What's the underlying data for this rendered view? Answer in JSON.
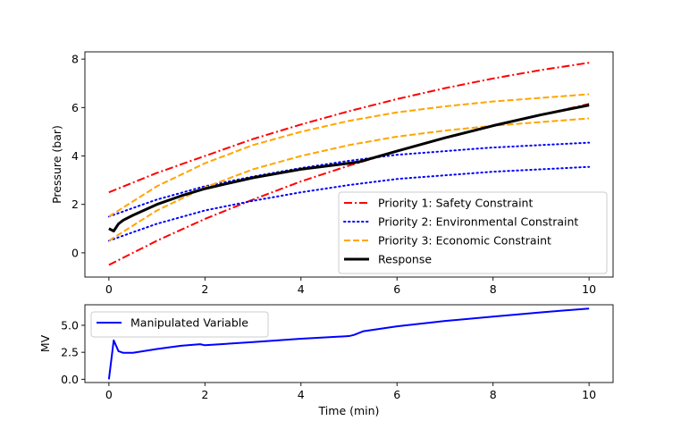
{
  "chart_data": [
    {
      "type": "line",
      "xlabel": "",
      "ylabel": "Pressure (bar)",
      "xlim": [
        -0.5,
        10.5
      ],
      "ylim": [
        -1.0,
        8.3
      ],
      "xticks": [
        "0",
        "2",
        "4",
        "6",
        "8",
        "10"
      ],
      "yticks": [
        "0",
        "2",
        "4",
        "6",
        "8"
      ],
      "legend_position": "lower-right",
      "series": [
        {
          "name": "Priority 1: Safety Constraint",
          "color": "#ff0000",
          "style": "dashdot",
          "legend": true,
          "x": [
            0,
            1,
            2,
            3,
            4,
            5,
            6,
            7,
            8,
            9,
            10
          ],
          "y": [
            2.5,
            3.3,
            4.0,
            4.7,
            5.3,
            5.85,
            6.35,
            6.8,
            7.2,
            7.55,
            7.85
          ]
        },
        {
          "name": "Priority 1: Safety Constraint (lower)",
          "color": "#ff0000",
          "style": "dashdot",
          "legend": false,
          "x": [
            0,
            1,
            2,
            3,
            4,
            5,
            6,
            7,
            8,
            9,
            10
          ],
          "y": [
            -0.5,
            0.5,
            1.4,
            2.2,
            2.95,
            3.6,
            4.2,
            4.75,
            5.25,
            5.7,
            6.15
          ]
        },
        {
          "name": "Priority 2: Environmental Constraint",
          "color": "#0000ff",
          "style": "dotted",
          "legend": true,
          "x": [
            0,
            1,
            2,
            3,
            4,
            5,
            6,
            7,
            8,
            9,
            10
          ],
          "y": [
            1.5,
            2.2,
            2.75,
            3.15,
            3.5,
            3.8,
            4.05,
            4.2,
            4.35,
            4.45,
            4.55
          ]
        },
        {
          "name": "Priority 2: Environmental Constraint (lower)",
          "color": "#0000ff",
          "style": "dotted",
          "legend": false,
          "x": [
            0,
            1,
            2,
            3,
            4,
            5,
            6,
            7,
            8,
            9,
            10
          ],
          "y": [
            0.5,
            1.2,
            1.75,
            2.15,
            2.5,
            2.8,
            3.05,
            3.2,
            3.35,
            3.45,
            3.55
          ]
        },
        {
          "name": "Priority 3: Economic Constraint",
          "color": "#ffa500",
          "style": "dashed",
          "legend": true,
          "x": [
            0,
            1,
            2,
            3,
            4,
            5,
            6,
            7,
            8,
            9,
            10
          ],
          "y": [
            1.5,
            2.75,
            3.7,
            4.45,
            5.0,
            5.45,
            5.8,
            6.05,
            6.25,
            6.4,
            6.55
          ]
        },
        {
          "name": "Priority 3: Economic Constraint (lower)",
          "color": "#ffa500",
          "style": "dashed",
          "legend": false,
          "x": [
            0,
            1,
            2,
            3,
            4,
            5,
            6,
            7,
            8,
            9,
            10
          ],
          "y": [
            0.5,
            1.75,
            2.7,
            3.45,
            4.0,
            4.45,
            4.8,
            5.05,
            5.25,
            5.4,
            5.55
          ]
        },
        {
          "name": "Response",
          "color": "#000000",
          "style": "solid",
          "legend": true,
          "x": [
            0,
            0.1,
            0.2,
            0.3,
            0.5,
            1.0,
            1.5,
            2.0,
            3.0,
            4.0,
            5.0,
            5.2,
            6.0,
            7.0,
            8.0,
            9.0,
            10.0
          ],
          "y": [
            1.0,
            0.9,
            1.2,
            1.35,
            1.55,
            2.0,
            2.35,
            2.65,
            3.1,
            3.45,
            3.7,
            3.75,
            4.2,
            4.75,
            5.25,
            5.7,
            6.1
          ]
        }
      ]
    },
    {
      "type": "line",
      "xlabel": "Time (min)",
      "ylabel": "MV",
      "xlim": [
        -0.5,
        10.5
      ],
      "ylim": [
        -0.3,
        6.9
      ],
      "xticks": [
        "0",
        "2",
        "4",
        "6",
        "8",
        "10"
      ],
      "yticks": [
        "0.0",
        "2.5",
        "5.0"
      ],
      "legend_position": "upper-left",
      "series": [
        {
          "name": "Manipulated Variable",
          "color": "#0000ff",
          "style": "solid",
          "legend": true,
          "x": [
            0,
            0.1,
            0.2,
            0.3,
            0.5,
            1.0,
            1.5,
            1.9,
            2.0,
            3.0,
            4.0,
            5.0,
            5.1,
            5.3,
            6.0,
            7.0,
            8.0,
            9.0,
            10.0
          ],
          "y": [
            0.0,
            3.6,
            2.6,
            2.45,
            2.45,
            2.8,
            3.1,
            3.25,
            3.15,
            3.45,
            3.75,
            4.0,
            4.1,
            4.45,
            4.9,
            5.4,
            5.8,
            6.2,
            6.55
          ]
        }
      ]
    }
  ]
}
